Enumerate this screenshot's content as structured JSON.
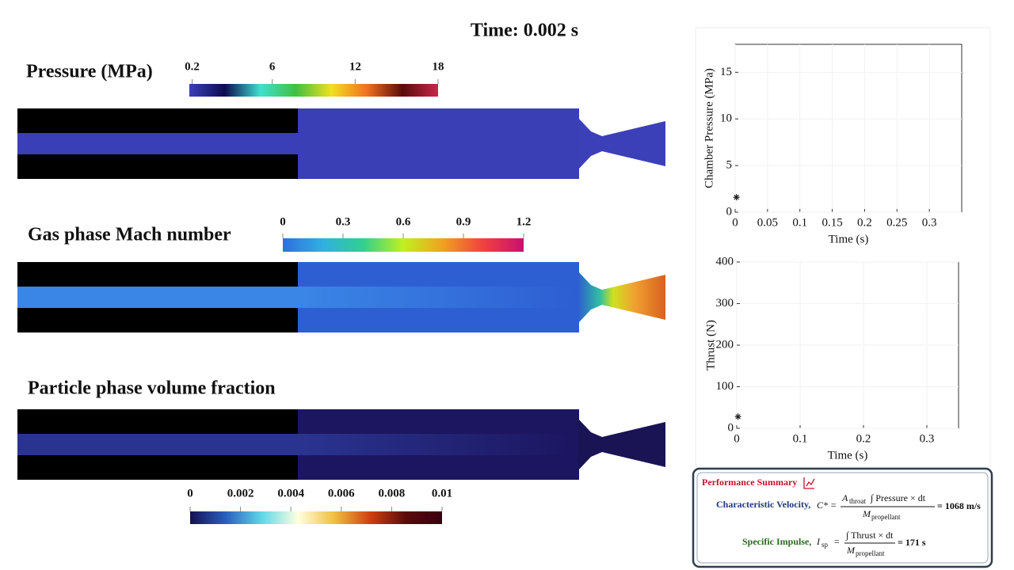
{
  "time_label": "Time: 0.002 s",
  "fields": [
    {
      "title": "Pressure (MPa)",
      "lim": [
        0,
        18
      ],
      "ticks": [
        0.2,
        6,
        12,
        18
      ],
      "colors": [
        "#3b3fb8",
        "#0c0c50",
        "#40e0d0",
        "#40c040",
        "#f0e020",
        "#f07020",
        "#5a0a0a",
        "#c8284a"
      ]
    },
    {
      "title": "Gas phase Mach number",
      "lim": [
        0,
        1.2
      ],
      "ticks": [
        0,
        0.3,
        0.6,
        0.9,
        1.2
      ],
      "colors": [
        "#2f6fe0",
        "#30b0e0",
        "#30d090",
        "#c0f020",
        "#f0a020",
        "#f04040",
        "#c81070"
      ]
    },
    {
      "title": "Particle phase volume fraction",
      "lim": [
        0,
        0.01
      ],
      "ticks": [
        0,
        0.002,
        0.004,
        0.006,
        0.008,
        0.01
      ],
      "colors": [
        "#141052",
        "#2a60c0",
        "#60d8e8",
        "#ffffe0",
        "#f0c040",
        "#d04010",
        "#5a0a0a",
        "#3a0010"
      ]
    }
  ],
  "chart_data": [
    {
      "type": "scatter",
      "ylabel": "Chamber Pressure (MPa)",
      "xlabel": "Time (s)",
      "x": [
        0.002
      ],
      "values": [
        1.6
      ],
      "color": "#222222",
      "xlim": [
        0,
        0.35
      ],
      "xticks": [
        0,
        0.05,
        0.1,
        0.15,
        0.2,
        0.25,
        0.3
      ],
      "ylim": [
        0,
        18
      ],
      "yticks": [
        0,
        5,
        10,
        15
      ]
    },
    {
      "type": "scatter",
      "ylabel": "Thrust (N)",
      "xlabel": "Time (s)",
      "x": [
        0.002
      ],
      "values": [
        28
      ],
      "color": "#222222",
      "xlim": [
        0,
        0.35
      ],
      "xticks": [
        0,
        0.1,
        0.2,
        0.3
      ],
      "ylim": [
        0,
        400
      ],
      "yticks": [
        0,
        100,
        200,
        300,
        400
      ]
    }
  ],
  "summary": {
    "title": "Performance Summary",
    "c_star": {
      "label": "Characteristic Velocity,",
      "lhs": "C* =",
      "num_a": "A",
      "num_sub": "throat",
      "num_rest": "∫ Pressure × dt",
      "den": "M",
      "den_sub": "propellant",
      "result": "= 1068 m/s"
    },
    "isp": {
      "label": "Specific Impulse,",
      "lhs": "I",
      "lhs_sub": "sp",
      "lhs_rest": "=",
      "num": "∫ Thrust × dt",
      "den": "M",
      "den_sub": "propellant",
      "result": "= 171 s"
    }
  }
}
